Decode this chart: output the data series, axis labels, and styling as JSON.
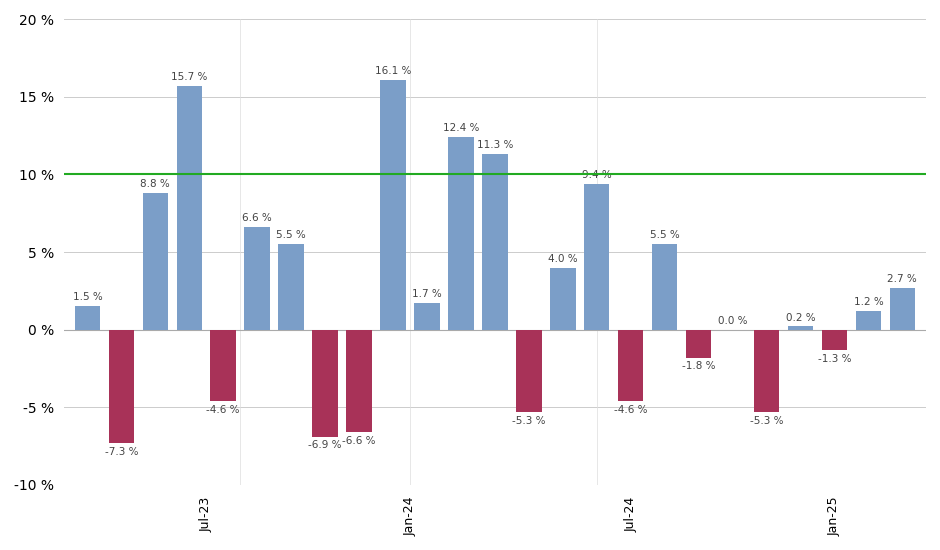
{
  "bars": [
    {
      "x": 0,
      "value": 1.5,
      "color": "blue"
    },
    {
      "x": 1,
      "value": -7.3,
      "color": "red"
    },
    {
      "x": 2,
      "value": 8.8,
      "color": "blue"
    },
    {
      "x": 3,
      "value": 15.7,
      "color": "blue"
    },
    {
      "x": 4,
      "value": -4.6,
      "color": "red"
    },
    {
      "x": 5,
      "value": 6.6,
      "color": "blue"
    },
    {
      "x": 6,
      "value": 5.5,
      "color": "blue"
    },
    {
      "x": 7,
      "value": -6.9,
      "color": "red"
    },
    {
      "x": 8,
      "value": -6.6,
      "color": "red"
    },
    {
      "x": 9,
      "value": 16.1,
      "color": "blue"
    },
    {
      "x": 10,
      "value": 1.7,
      "color": "blue"
    },
    {
      "x": 11,
      "value": 12.4,
      "color": "blue"
    },
    {
      "x": 12,
      "value": 11.3,
      "color": "blue"
    },
    {
      "x": 13,
      "value": -5.3,
      "color": "red"
    },
    {
      "x": 14,
      "value": 4.0,
      "color": "blue"
    },
    {
      "x": 15,
      "value": 9.4,
      "color": "blue"
    },
    {
      "x": 16,
      "value": -4.6,
      "color": "red"
    },
    {
      "x": 17,
      "value": 5.5,
      "color": "blue"
    },
    {
      "x": 18,
      "value": -1.8,
      "color": "red"
    },
    {
      "x": 19,
      "value": 0.0,
      "color": "blue"
    },
    {
      "x": 20,
      "value": -5.3,
      "color": "red"
    },
    {
      "x": 21,
      "value": 0.2,
      "color": "blue"
    },
    {
      "x": 22,
      "value": -1.3,
      "color": "red"
    },
    {
      "x": 23,
      "value": 1.2,
      "color": "blue"
    },
    {
      "x": 24,
      "value": 2.7,
      "color": "blue"
    }
  ],
  "blue_color": "#7B9EC8",
  "red_color": "#A83258",
  "hline_y": 10,
  "hline_color": "#22AA22",
  "ylim": [
    -10,
    20
  ],
  "yticks": [
    -10,
    -5,
    0,
    5,
    10,
    15,
    20
  ],
  "xtick_positions": [
    3.5,
    9.5,
    16.0,
    22.0
  ],
  "xtick_labels": [
    "Jul-23",
    "Jan-24",
    "Jul-24",
    "Jan-25"
  ],
  "bar_width": 0.75,
  "background_color": "#FFFFFF",
  "grid_color": "#CCCCCC",
  "label_fontsize": 7.5
}
